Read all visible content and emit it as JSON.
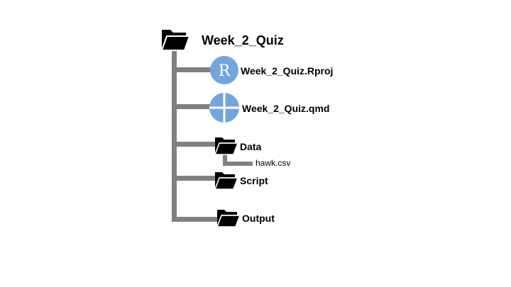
{
  "tree": {
    "root": {
      "name": "Week_2_Quiz",
      "icon": "folder-icon"
    },
    "items": [
      {
        "name": "Week_2_Quiz.Rproj",
        "icon": "r-project-icon",
        "icon_letter": "R",
        "icon_color": "#75A5DA"
      },
      {
        "name": "Week_2_Quiz.qmd",
        "icon": "quarto-icon",
        "icon_color": "#75A5DA"
      },
      {
        "name": "Data",
        "icon": "folder-icon",
        "children": [
          {
            "name": "hawk.csv"
          }
        ]
      },
      {
        "name": "Script",
        "icon": "folder-icon"
      },
      {
        "name": "Output",
        "icon": "folder-icon"
      }
    ]
  },
  "colors": {
    "connector": "#808080",
    "text": "#000000",
    "folder": "#000000"
  }
}
